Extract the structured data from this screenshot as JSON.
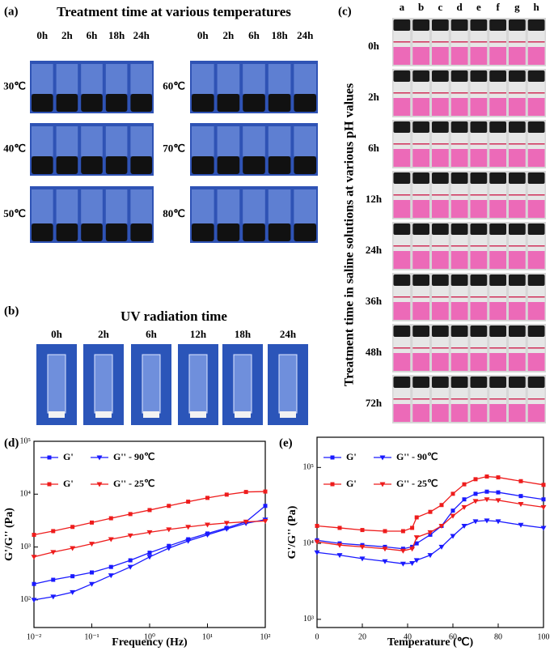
{
  "panel_a": {
    "label": "(a)",
    "title": "Treatment time at various temperatures",
    "times_left": [
      "0h",
      "2h",
      "6h",
      "18h",
      "24h"
    ],
    "times_right": [
      "0h",
      "2h",
      "6h",
      "18h",
      "24h"
    ],
    "temperatures_left": [
      "30℃",
      "40℃",
      "50℃"
    ],
    "temperatures_right": [
      "60℃",
      "70℃",
      "80℃"
    ]
  },
  "panel_b": {
    "label": "(b)",
    "title": "UV radiation time",
    "times": [
      "0h",
      "2h",
      "6h",
      "12h",
      "18h",
      "24h"
    ]
  },
  "panel_c": {
    "label": "(c)",
    "title": "Treatment time in saline solutions at various pH values",
    "columns": [
      "a",
      "b",
      "c",
      "d",
      "e",
      "f",
      "g",
      "h"
    ],
    "times": [
      "0h",
      "2h",
      "6h",
      "12h",
      "24h",
      "36h",
      "48h",
      "72h"
    ]
  },
  "chart_data": [
    {
      "type": "line",
      "panel": "(d)",
      "x_label": "Frequency (Hz)",
      "y_label": "G'/G'' (Pa)",
      "xscale": "log",
      "yscale": "log",
      "x": [
        0.01,
        0.0215,
        0.0464,
        0.1,
        0.215,
        0.464,
        1,
        2.15,
        4.64,
        10,
        21.5,
        46.4,
        100
      ],
      "xlim": [
        0.01,
        100
      ],
      "xticks": [
        {
          "value": 0.01,
          "label": "10⁻²"
        },
        {
          "value": 0.1,
          "label": "10⁻¹"
        },
        {
          "value": 1,
          "label": "10⁰"
        },
        {
          "value": 10,
          "label": "10¹"
        },
        {
          "value": 100,
          "label": "10²"
        }
      ],
      "ylim": [
        30,
        100000
      ],
      "yticks": [
        {
          "value": 100,
          "label": "10²"
        },
        {
          "value": 1000,
          "label": "10³"
        },
        {
          "value": 10000,
          "label": "10⁴"
        },
        {
          "value": 100000,
          "label": "10⁵"
        }
      ],
      "series": [
        {
          "name": "G'",
          "color": "#1a1aff",
          "marker": "square",
          "values": [
            200,
            240,
            280,
            330,
            420,
            560,
            780,
            1050,
            1400,
            1800,
            2300,
            3000,
            6000
          ]
        },
        {
          "name": "G'' - 90℃",
          "color": "#1a1aff",
          "marker": "triangle",
          "values": [
            100,
            115,
            140,
            200,
            290,
            420,
            650,
            950,
            1300,
            1700,
            2200,
            2800,
            3300
          ]
        },
        {
          "name": "G'",
          "color": "#ee1c1c",
          "marker": "square",
          "values": [
            1700,
            2000,
            2400,
            2900,
            3500,
            4200,
            5000,
            6000,
            7200,
            8500,
            9800,
            11000,
            11200
          ]
        },
        {
          "name": "G'' - 25℃",
          "color": "#ee1c1c",
          "marker": "triangle",
          "values": [
            650,
            800,
            950,
            1150,
            1400,
            1650,
            1900,
            2150,
            2400,
            2650,
            2850,
            3000,
            3100
          ]
        }
      ]
    },
    {
      "type": "line",
      "panel": "(e)",
      "x_label": "Temperature (℃)",
      "y_label": "G'/G'' (Pa)",
      "xscale": "linear",
      "yscale": "log",
      "x": [
        0,
        10,
        20,
        30,
        38,
        42,
        44,
        50,
        55,
        60,
        65,
        70,
        75,
        80,
        90,
        100
      ],
      "xlim": [
        0,
        100
      ],
      "xticks": [
        0,
        20,
        40,
        60,
        80,
        100
      ],
      "ylim": [
        780,
        250000
      ],
      "yticks": [
        {
          "value": 1000,
          "label": "10³"
        },
        {
          "value": 10000,
          "label": "10⁴"
        },
        {
          "value": 100000,
          "label": "10⁵"
        }
      ],
      "series": [
        {
          "name": "G'",
          "color": "#1a1aff",
          "marker": "square",
          "values": [
            11000,
            10000,
            9500,
            9000,
            8500,
            9000,
            10000,
            13000,
            17000,
            27000,
            38000,
            45000,
            48000,
            47000,
            42000,
            38000
          ]
        },
        {
          "name": "G'' - 90℃",
          "color": "#1a1aff",
          "marker": "triangle",
          "values": [
            7600,
            7000,
            6300,
            5800,
            5400,
            5500,
            6000,
            7000,
            9000,
            12500,
            17000,
            19500,
            20000,
            19500,
            17500,
            16000
          ]
        },
        {
          "name": "G'",
          "color": "#ee1c1c",
          "marker": "square",
          "values": [
            17000,
            16000,
            15000,
            14500,
            14500,
            16000,
            22000,
            26000,
            32000,
            45000,
            60000,
            70000,
            76000,
            74000,
            66000,
            59000
          ]
        },
        {
          "name": "G'' - 25℃",
          "color": "#ee1c1c",
          "marker": "triangle",
          "values": [
            10500,
            9500,
            9000,
            8500,
            8000,
            8500,
            12000,
            14000,
            17000,
            23000,
            30000,
            36000,
            38000,
            37000,
            33000,
            30000
          ]
        }
      ]
    }
  ]
}
